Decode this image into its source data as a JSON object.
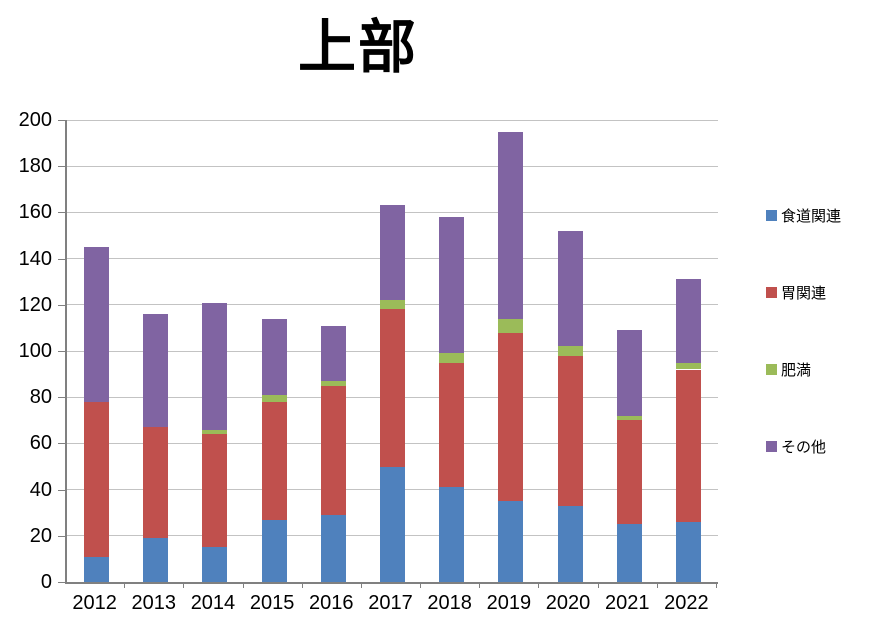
{
  "chart_data": {
    "type": "bar",
    "stacked": true,
    "title": "上部",
    "categories": [
      "2012",
      "2013",
      "2014",
      "2015",
      "2016",
      "2017",
      "2018",
      "2019",
      "2020",
      "2021",
      "2022"
    ],
    "series": [
      {
        "name": "食道関連",
        "color": "#4F81BD",
        "values": [
          11,
          19,
          15,
          27,
          29,
          50,
          41,
          35,
          33,
          25,
          26
        ]
      },
      {
        "name": "胃関連",
        "color": "#C0504D",
        "values": [
          67,
          48,
          49,
          51,
          56,
          68,
          54,
          73,
          65,
          45,
          66
        ]
      },
      {
        "name": "肥満",
        "color": "#9BBB59",
        "values": [
          0,
          0,
          2,
          3,
          2,
          4,
          4,
          6,
          4,
          2,
          3
        ]
      },
      {
        "name": "その他",
        "color": "#8064A2",
        "values": [
          67,
          49,
          55,
          33,
          24,
          41,
          59,
          81,
          50,
          37,
          36
        ]
      }
    ],
    "totals": [
      145,
      116,
      121,
      114,
      111,
      163,
      158,
      195,
      152,
      109,
      131
    ],
    "ylim": [
      0,
      200
    ],
    "yticks": [
      0,
      20,
      40,
      60,
      80,
      100,
      120,
      140,
      160,
      180,
      200
    ],
    "grid": "horizontal",
    "legend_position": "right"
  }
}
